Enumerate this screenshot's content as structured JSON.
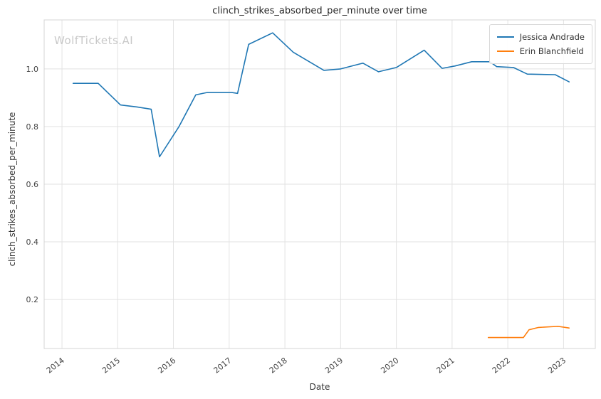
{
  "watermark": "WolfTickets.AI",
  "chart_data": {
    "type": "line",
    "title": "clinch_strikes_absorbed_per_minute over time",
    "xlabel": "Date",
    "ylabel": "clinch_strikes_absorbed_per_minute",
    "xlim": [
      2013.68,
      2023.57
    ],
    "ylim": [
      0.03,
      1.17
    ],
    "x_ticks": [
      2014,
      2015,
      2016,
      2017,
      2018,
      2019,
      2020,
      2021,
      2022,
      2023
    ],
    "y_ticks": [
      0.2,
      0.4,
      0.6,
      0.8,
      1.0
    ],
    "grid": true,
    "legend_position": "upper right",
    "series": [
      {
        "name": "Jessica Andrade",
        "color": "#1f77b4",
        "x": [
          2014.2,
          2014.65,
          2015.05,
          2015.35,
          2015.6,
          2015.75,
          2016.1,
          2016.4,
          2016.6,
          2017.05,
          2017.15,
          2017.35,
          2017.78,
          2018.15,
          2018.7,
          2019.0,
          2019.4,
          2019.68,
          2020.0,
          2020.5,
          2020.82,
          2021.05,
          2021.35,
          2021.68,
          2021.8,
          2022.1,
          2022.35,
          2022.85,
          2023.1
        ],
        "y": [
          0.95,
          0.95,
          0.875,
          0.868,
          0.86,
          0.695,
          0.8,
          0.91,
          0.918,
          0.918,
          0.915,
          1.085,
          1.125,
          1.058,
          0.995,
          1.0,
          1.02,
          0.99,
          1.005,
          1.065,
          1.002,
          1.01,
          1.025,
          1.025,
          1.008,
          1.005,
          0.982,
          0.98,
          0.955
        ]
      },
      {
        "name": "Erin Blanchfield",
        "color": "#ff7f0e",
        "x": [
          2021.65,
          2022.0,
          2022.28,
          2022.38,
          2022.55,
          2022.9,
          2023.1
        ],
        "y": [
          0.068,
          0.068,
          0.068,
          0.095,
          0.103,
          0.107,
          0.101
        ]
      }
    ]
  }
}
